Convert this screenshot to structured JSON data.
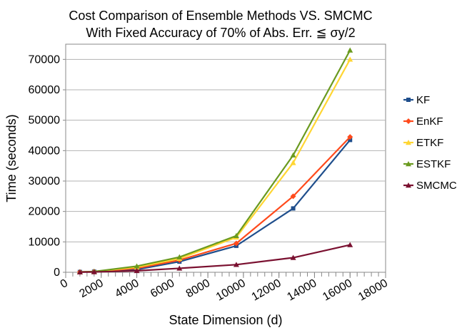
{
  "chart_data": {
    "type": "line",
    "title_lines": [
      "Cost Comparison of Ensemble Methods VS. SMCMC",
      "With Fixed Accuracy of 70% of Abs. Err. ≦ σy/2"
    ],
    "xlabel": "State Dimension (d)",
    "ylabel": "Time (seconds)",
    "xlim": [
      0,
      18000
    ],
    "ylim": [
      0,
      75000
    ],
    "x_ticks": [
      0,
      2000,
      4000,
      6000,
      8000,
      10000,
      12000,
      14000,
      16000,
      18000
    ],
    "y_ticks": [
      0,
      10000,
      20000,
      30000,
      40000,
      50000,
      60000,
      70000
    ],
    "x_minor_step": 400,
    "legend_position": "right",
    "x": [
      800,
      1600,
      4000,
      6400,
      9600,
      12800,
      16000
    ],
    "series": [
      {
        "name": "KF",
        "color": "#1f4e8c",
        "marker": "square",
        "values": [
          100,
          200,
          900,
          3500,
          8700,
          21000,
          43500
        ]
      },
      {
        "name": "EnKF",
        "color": "#ff4a1c",
        "marker": "diamond",
        "values": [
          100,
          200,
          1300,
          4000,
          9500,
          25000,
          44500
        ]
      },
      {
        "name": "ETKF",
        "color": "#ffd633",
        "marker": "triangle",
        "values": [
          100,
          200,
          1700,
          4500,
          11500,
          36000,
          70000
        ]
      },
      {
        "name": "ESTKF",
        "color": "#6a9a1f",
        "marker": "triangle",
        "values": [
          100,
          250,
          2000,
          5000,
          12000,
          38500,
          73000
        ]
      },
      {
        "name": "SMCMC",
        "color": "#7a1030",
        "marker": "triangle",
        "values": [
          50,
          100,
          500,
          1300,
          2500,
          4800,
          9000
        ]
      }
    ]
  }
}
